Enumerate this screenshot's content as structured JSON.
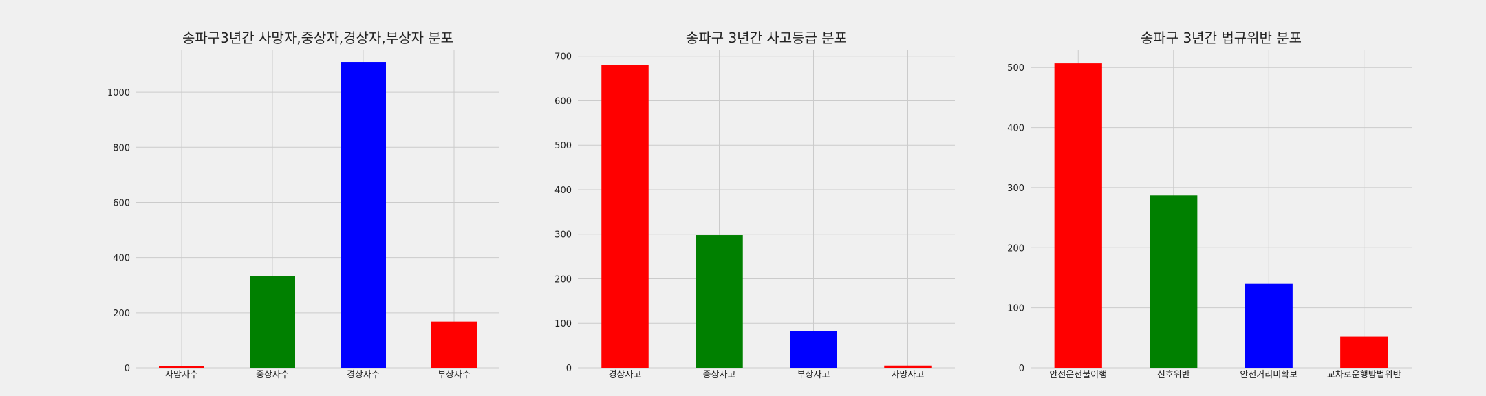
{
  "chart_data": [
    {
      "type": "bar",
      "title": "송파구3년간 사망자,중상자,경상자,부상자 분포",
      "categories": [
        "사망자수",
        "중상자수",
        "경상자수",
        "부상자수"
      ],
      "values": [
        5,
        333,
        1110,
        168
      ],
      "colors": [
        "#ff0000",
        "#008000",
        "#0000ff",
        "#ff0000"
      ],
      "ylim": [
        0,
        1155
      ],
      "yticks": [
        0,
        200,
        400,
        600,
        800,
        1000
      ],
      "grid": true
    },
    {
      "type": "bar",
      "title": "송파구 3년간 사고등급 분포",
      "categories": [
        "경상사고",
        "중상사고",
        "부상사고",
        "사망사고"
      ],
      "values": [
        681,
        298,
        82,
        5
      ],
      "colors": [
        "#ff0000",
        "#008000",
        "#0000ff",
        "#ff0000"
      ],
      "ylim": [
        0,
        715
      ],
      "yticks": [
        0,
        100,
        200,
        300,
        400,
        500,
        600,
        700
      ],
      "grid": true
    },
    {
      "type": "bar",
      "title": "송파구 3년간 법규위반 분포",
      "categories": [
        "안전운전불이행",
        "신호위반",
        "안전거리미확보",
        "교차로운행방법위반"
      ],
      "values": [
        507,
        287,
        140,
        52
      ],
      "colors": [
        "#ff0000",
        "#008000",
        "#0000ff",
        "#ff0000"
      ],
      "ylim": [
        0,
        530
      ],
      "yticks": [
        0,
        100,
        200,
        300,
        400,
        500
      ],
      "grid": true
    }
  ]
}
